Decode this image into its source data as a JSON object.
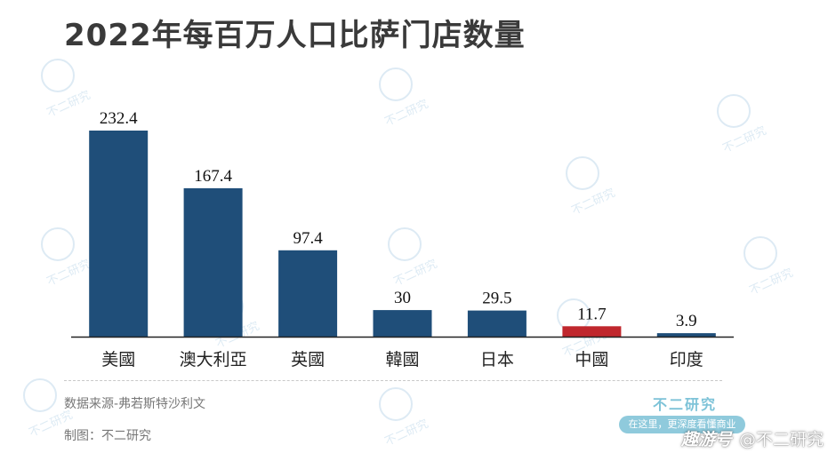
{
  "title": "2022年每百万人口比萨门店数量",
  "chart_data": {
    "type": "bar",
    "categories": [
      "美國",
      "澳大利亞",
      "英國",
      "韓國",
      "日本",
      "中國",
      "印度"
    ],
    "values": [
      232.4,
      167.4,
      97.4,
      30,
      29.5,
      11.7,
      3.9
    ],
    "value_labels": [
      "232.4",
      "167.4",
      "97.4",
      "30",
      "29.5",
      "11.7",
      "3.9"
    ],
    "ylim": [
      0,
      240
    ],
    "grid": false,
    "colors": {
      "default_bar": "#1f4e79",
      "highlight_bar": "#c0272d",
      "highlight_category": "中國"
    }
  },
  "footer": {
    "source": "数据来源-弗若斯特沙利文",
    "maker": "制图：不二研究"
  },
  "logo": {
    "title": "不二研究",
    "slogan": "在这里，更深度看懂商业"
  },
  "platform": {
    "brand": "趣游号",
    "handle": "@不二研究"
  },
  "watermark": {
    "text": "不二研究",
    "icon": "watermark-logo-icon"
  }
}
